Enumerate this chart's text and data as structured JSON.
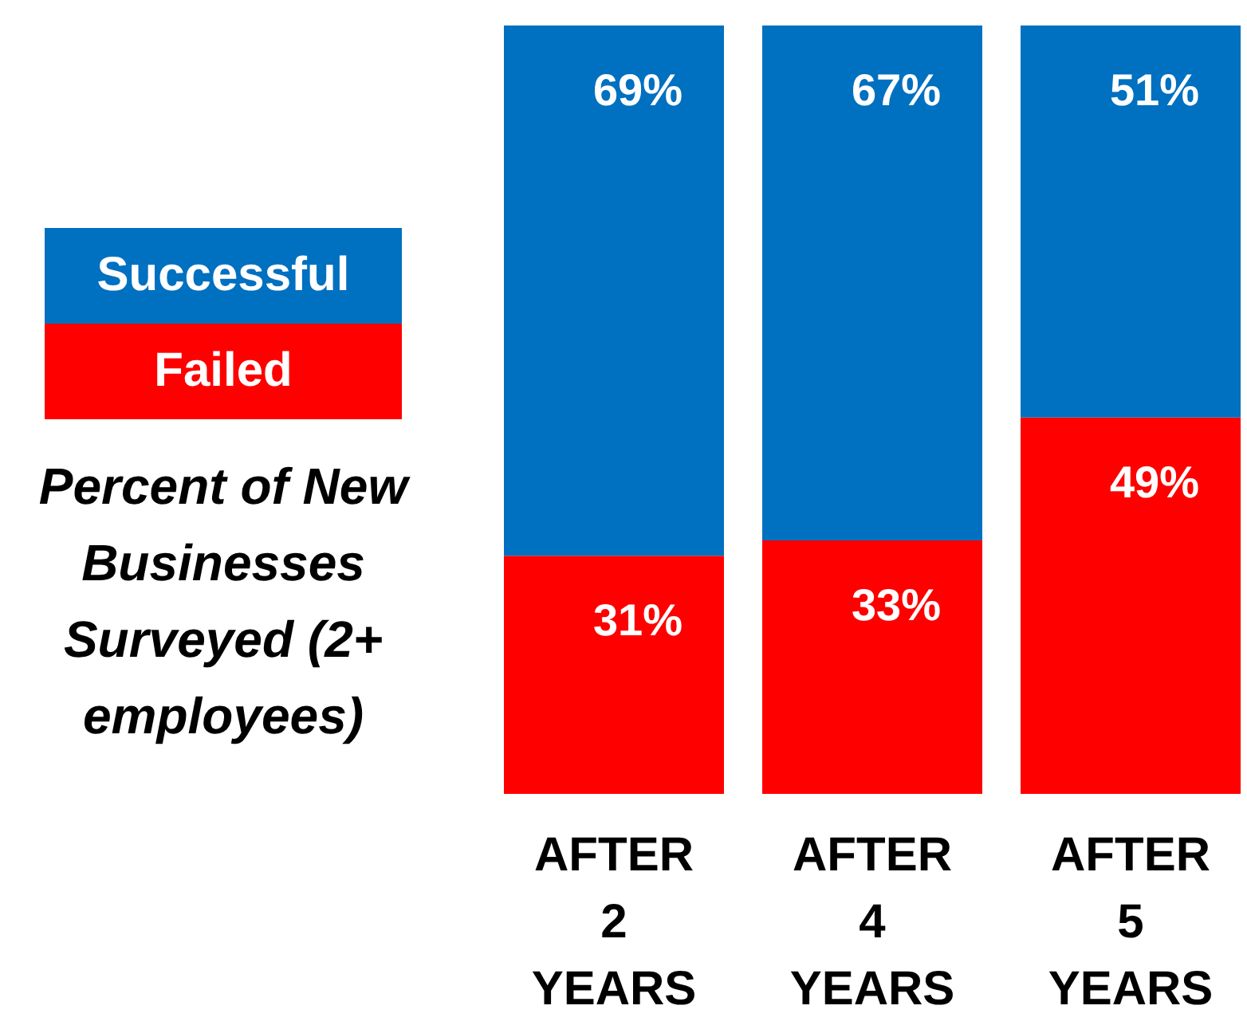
{
  "chart_data": {
    "type": "bar",
    "stacked": true,
    "ylabel": "Percent of New Businesses Surveyed (2+ employees)",
    "categories": [
      "AFTER 2 YEARS",
      "AFTER 4 YEARS",
      "AFTER 5 YEARS"
    ],
    "series": [
      {
        "name": "Failed",
        "color": "#ff0000",
        "values": [
          31,
          33,
          49
        ],
        "value_labels": [
          "31%",
          "33%",
          "49%"
        ]
      },
      {
        "name": "Successful",
        "color": "#0070c0",
        "values": [
          69,
          67,
          51
        ],
        "value_labels": [
          "69%",
          "67%",
          "51%"
        ]
      }
    ],
    "ylim": [
      0,
      100
    ],
    "tick_labels": "x",
    "legend": "left",
    "grid": false
  }
}
